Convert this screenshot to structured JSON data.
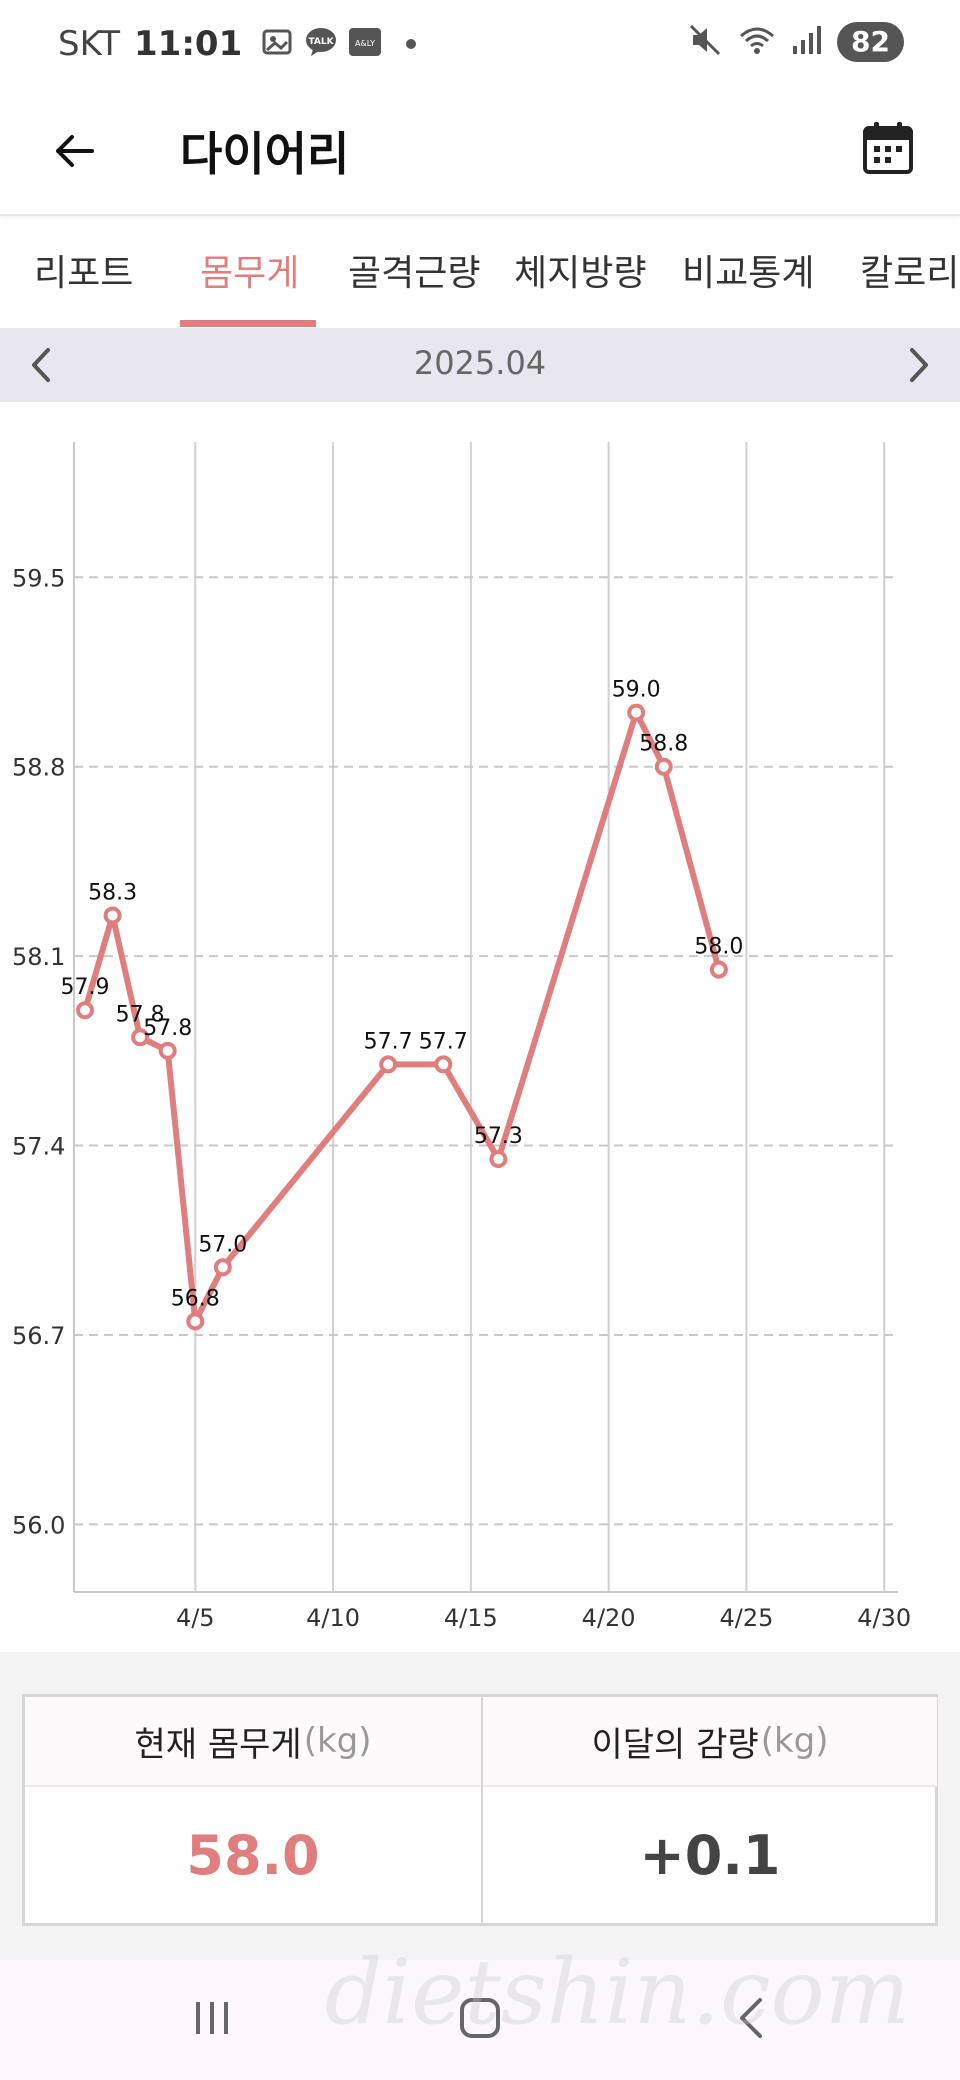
{
  "status_bar": {
    "carrier": "SKT",
    "time": "11:01",
    "battery": "82"
  },
  "header": {
    "title": "다이어리"
  },
  "tabs": [
    {
      "label": "리포트",
      "active": false
    },
    {
      "label": "몸무게",
      "active": true
    },
    {
      "label": "골격근량",
      "active": false
    },
    {
      "label": "체지방량",
      "active": false
    },
    {
      "label": "비교통계",
      "active": false
    },
    {
      "label": "칼로리",
      "active": false
    }
  ],
  "month_nav": {
    "label": "2025.04"
  },
  "chart_data": {
    "type": "line",
    "x_tick_labels": [
      "4/5",
      "4/10",
      "4/15",
      "4/20",
      "4/25",
      "4/30"
    ],
    "x_ticks": [
      5,
      10,
      15,
      20,
      25,
      30
    ],
    "y_tick_labels": [
      "59.5",
      "58.8",
      "58.1",
      "57.4",
      "56.7",
      "56.0"
    ],
    "y_ticks": [
      59.5,
      58.8,
      58.1,
      57.4,
      56.7,
      56.0
    ],
    "xlim": [
      0.6,
      30.5
    ],
    "ylim": [
      55.75,
      60.0
    ],
    "grid": true,
    "color": "#e07d7d",
    "series": [
      {
        "points": [
          {
            "x": 1,
            "y": 57.9,
            "label": "57.9"
          },
          {
            "x": 2,
            "y": 58.25,
            "label": "58.3"
          },
          {
            "x": 3,
            "y": 57.8,
            "label": "57.8"
          },
          {
            "x": 4,
            "y": 57.75,
            "label": "57.8"
          },
          {
            "x": 5,
            "y": 56.75,
            "label": "56.8"
          },
          {
            "x": 6,
            "y": 56.95,
            "label": "57.0"
          },
          {
            "x": 12,
            "y": 57.7,
            "label": "57.7"
          },
          {
            "x": 14,
            "y": 57.7,
            "label": "57.7"
          },
          {
            "x": 16,
            "y": 57.35,
            "label": "57.3"
          },
          {
            "x": 21,
            "y": 59.0,
            "label": "59.0"
          },
          {
            "x": 22,
            "y": 58.8,
            "label": "58.8"
          },
          {
            "x": 24,
            "y": 58.05,
            "label": "58.0"
          }
        ]
      }
    ]
  },
  "summary": {
    "current_label": "현재 몸무게",
    "current_unit": "(kg)",
    "current_value": "58.0",
    "change_label": "이달의 감량",
    "change_unit": "(kg)",
    "change_value": "+0.1"
  },
  "watermark": "dietshin.com"
}
